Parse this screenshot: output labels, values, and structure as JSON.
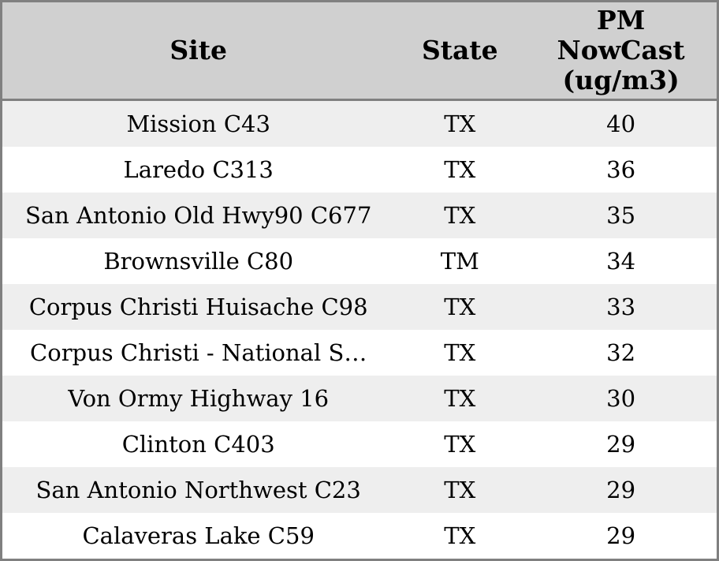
{
  "table": {
    "columns": [
      {
        "id": "site",
        "label": "Site"
      },
      {
        "id": "state",
        "label": "State"
      },
      {
        "id": "pm_nowcast",
        "label": "PM\nNowCast\n(ug/m3)"
      }
    ],
    "rows": [
      {
        "site": "Mission C43",
        "state": "TX",
        "pm_nowcast": "40"
      },
      {
        "site": "Laredo C313",
        "state": "TX",
        "pm_nowcast": "36"
      },
      {
        "site": "San Antonio Old Hwy90 C677",
        "state": "TX",
        "pm_nowcast": "35"
      },
      {
        "site": "Brownsville C80",
        "state": "TM",
        "pm_nowcast": "34"
      },
      {
        "site": "Corpus Christi Huisache C98",
        "state": "TX",
        "pm_nowcast": "33"
      },
      {
        "site": "Corpus Christi - National S…",
        "state": "TX",
        "pm_nowcast": "32"
      },
      {
        "site": "Von Ormy Highway 16",
        "state": "TX",
        "pm_nowcast": "30"
      },
      {
        "site": "Clinton C403",
        "state": "TX",
        "pm_nowcast": "29"
      },
      {
        "site": "San Antonio Northwest C23",
        "state": "TX",
        "pm_nowcast": "29"
      },
      {
        "site": "Calaveras Lake C59",
        "state": "TX",
        "pm_nowcast": "29"
      }
    ]
  },
  "colors": {
    "border": "#808080",
    "header_bg": "#d0d0d0",
    "row_alt_bg": "#eeeeee",
    "row_bg": "#ffffff",
    "text": "#000000"
  }
}
